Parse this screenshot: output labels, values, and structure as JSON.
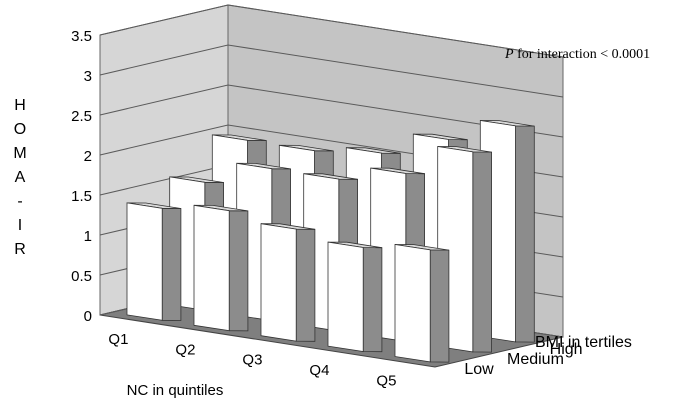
{
  "annotation": {
    "p_symbol": "P",
    "text": " for interaction < 0.0001"
  },
  "chart_data": {
    "type": "bar",
    "style": "3d-grouped-bar",
    "title": "",
    "xlabel": "NC in quintiles",
    "ylabel": "HOMA-IR",
    "zlabel": "BMI in tertiles",
    "categories": [
      "Q1",
      "Q2",
      "Q3",
      "Q4",
      "Q5"
    ],
    "ylim": [
      0,
      3.5
    ],
    "yticks": [
      "0",
      "0.5",
      "1",
      "1.5",
      "2",
      "2.5",
      "3",
      "3.5"
    ],
    "grid": true,
    "series": [
      {
        "name": "Low",
        "values": [
          1.4,
          1.5,
          1.4,
          1.3,
          1.4
        ]
      },
      {
        "name": "Medium",
        "values": [
          1.6,
          1.9,
          1.9,
          2.1,
          2.5
        ]
      },
      {
        "name": "High",
        "values": [
          2.0,
          2.0,
          2.1,
          2.4,
          2.7
        ]
      }
    ],
    "colors": {
      "bar_front": "#ffffff",
      "bar_side": "#8c8c8c",
      "bar_top": "#d9d9d9",
      "wall": "#c4c4c4",
      "floor": "#7f7f7f"
    }
  }
}
